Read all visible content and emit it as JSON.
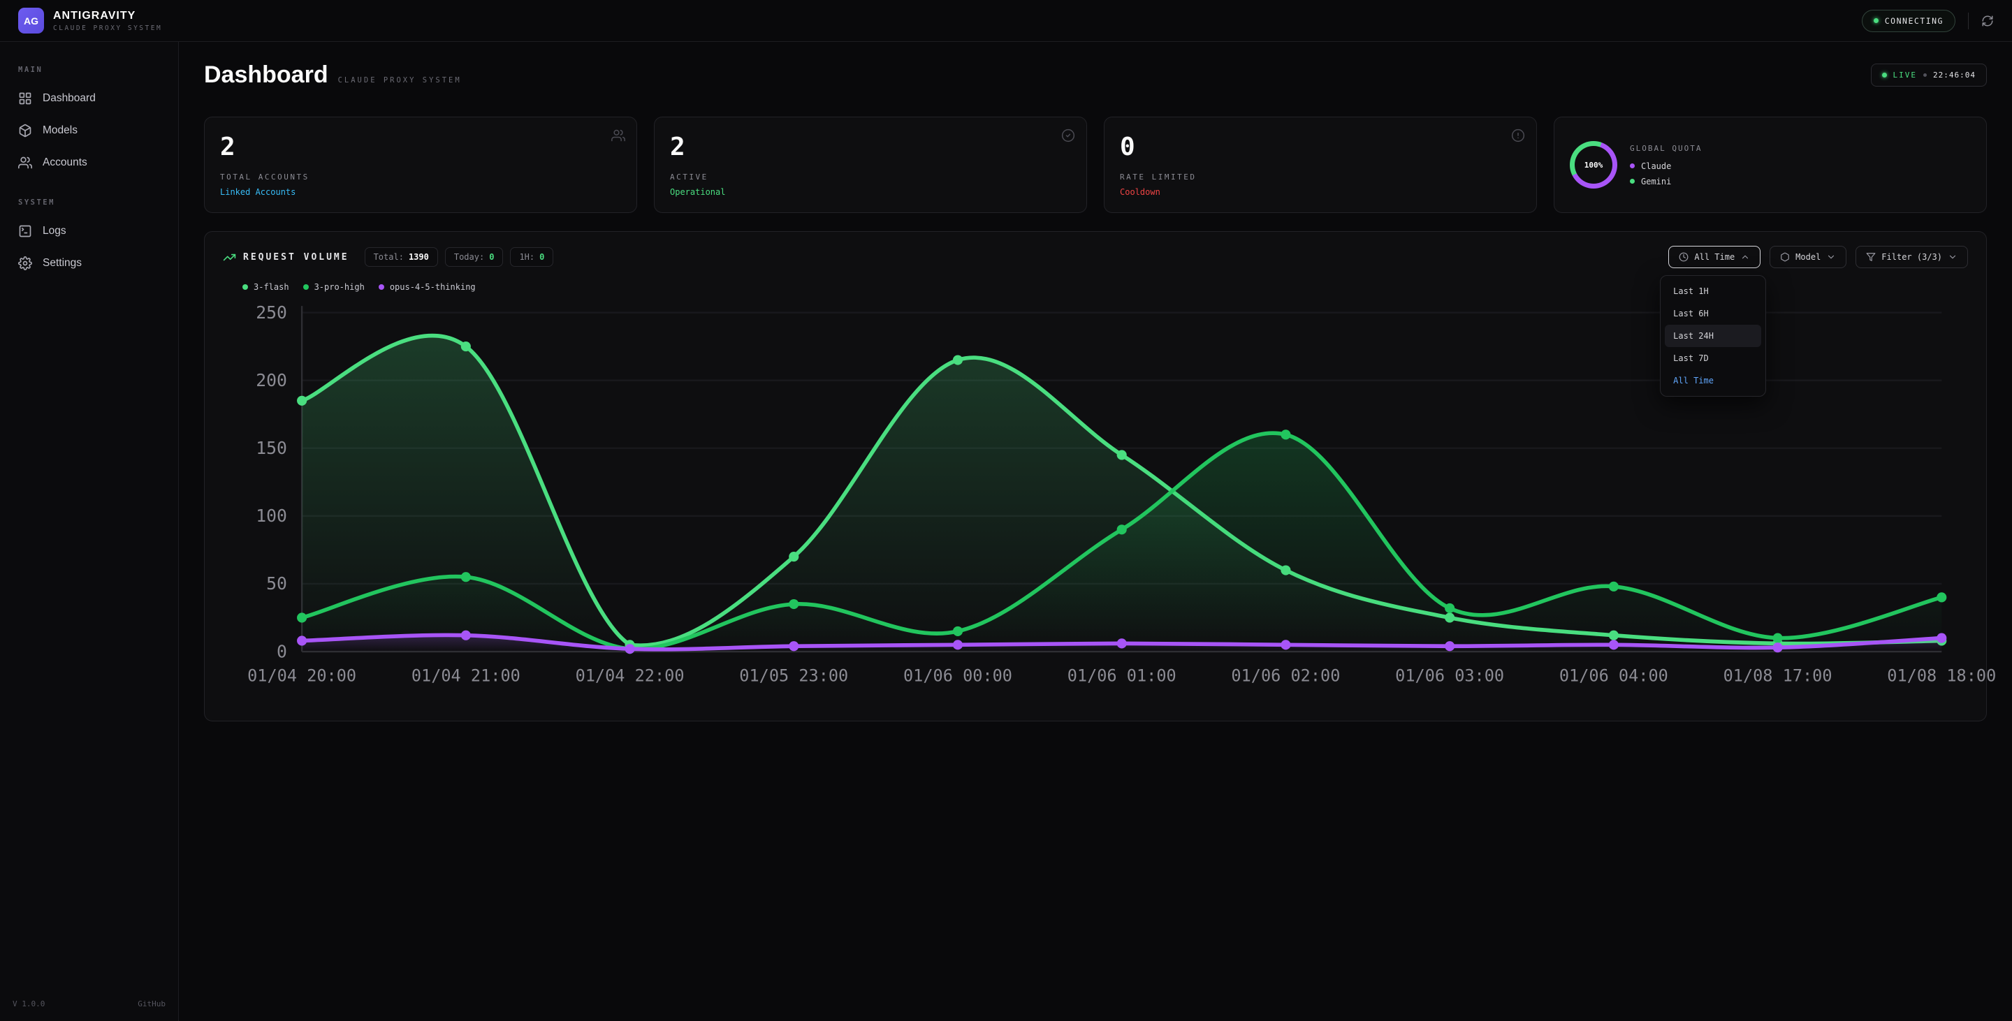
{
  "topbar": {
    "logo": "AG",
    "title": "ANTIGRAVITY",
    "subtitle": "CLAUDE PROXY SYSTEM",
    "status": "CONNECTING"
  },
  "sidebar": {
    "sections": [
      {
        "label": "MAIN",
        "items": [
          {
            "label": "Dashboard"
          },
          {
            "label": "Models"
          },
          {
            "label": "Accounts"
          }
        ]
      },
      {
        "label": "SYSTEM",
        "items": [
          {
            "label": "Logs"
          },
          {
            "label": "Settings"
          }
        ]
      }
    ],
    "version": "V 1.0.0",
    "github": "GitHub"
  },
  "header": {
    "title": "Dashboard",
    "subtitle": "CLAUDE PROXY SYSTEM",
    "live_label": "LIVE",
    "time": "22:46:04"
  },
  "stats": [
    {
      "value": "2",
      "label": "TOTAL ACCOUNTS",
      "sub": "Linked Accounts",
      "sub_color": "#38bdf8"
    },
    {
      "value": "2",
      "label": "ACTIVE",
      "sub": "Operational",
      "sub_color": "#4ade80"
    },
    {
      "value": "0",
      "label": "RATE LIMITED",
      "sub": "Cooldown",
      "sub_color": "#ef4444"
    }
  ],
  "quota": {
    "percent": "100%",
    "label": "GLOBAL QUOTA",
    "legend": [
      {
        "name": "Claude",
        "color": "#a855f7"
      },
      {
        "name": "Gemini",
        "color": "#4ade80"
      }
    ]
  },
  "chart_controls": {
    "badges": [
      {
        "label": "Total:",
        "value": "1390",
        "value_color": "#fafafa"
      },
      {
        "label": "Today:",
        "value": "0",
        "value_color": "#4ade80"
      },
      {
        "label": "1H:",
        "value": "0",
        "value_color": "#4ade80"
      }
    ],
    "time_range_button": "All Time",
    "model_button": "Model",
    "filter_button": "Filter (3/3)",
    "dropdown": {
      "items": [
        "Last 1H",
        "Last 6H",
        "Last 24H",
        "Last 7D",
        "All Time"
      ],
      "selected": "All Time"
    }
  },
  "chart_data": {
    "type": "line",
    "title": "REQUEST VOLUME",
    "x": [
      "01/04 20:00",
      "01/04 21:00",
      "01/04 22:00",
      "01/05 23:00",
      "01/06 00:00",
      "01/06 01:00",
      "01/06 02:00",
      "01/06 03:00",
      "01/06 04:00",
      "01/08 17:00",
      "01/08 18:00"
    ],
    "ylim": [
      0,
      250
    ],
    "ytick": 50,
    "grid": true,
    "legend_position": "top-left",
    "series": [
      {
        "name": "3-flash",
        "color": "#4ade80",
        "values": [
          185,
          225,
          5,
          70,
          215,
          145,
          60,
          25,
          12,
          6,
          8
        ]
      },
      {
        "name": "3-pro-high",
        "color": "#22c55e",
        "values": [
          25,
          55,
          2,
          35,
          15,
          90,
          160,
          32,
          48,
          10,
          40
        ]
      },
      {
        "name": "opus-4-5-thinking",
        "color": "#a855f7",
        "values": [
          8,
          12,
          2,
          4,
          5,
          6,
          5,
          4,
          5,
          3,
          10
        ]
      }
    ]
  }
}
